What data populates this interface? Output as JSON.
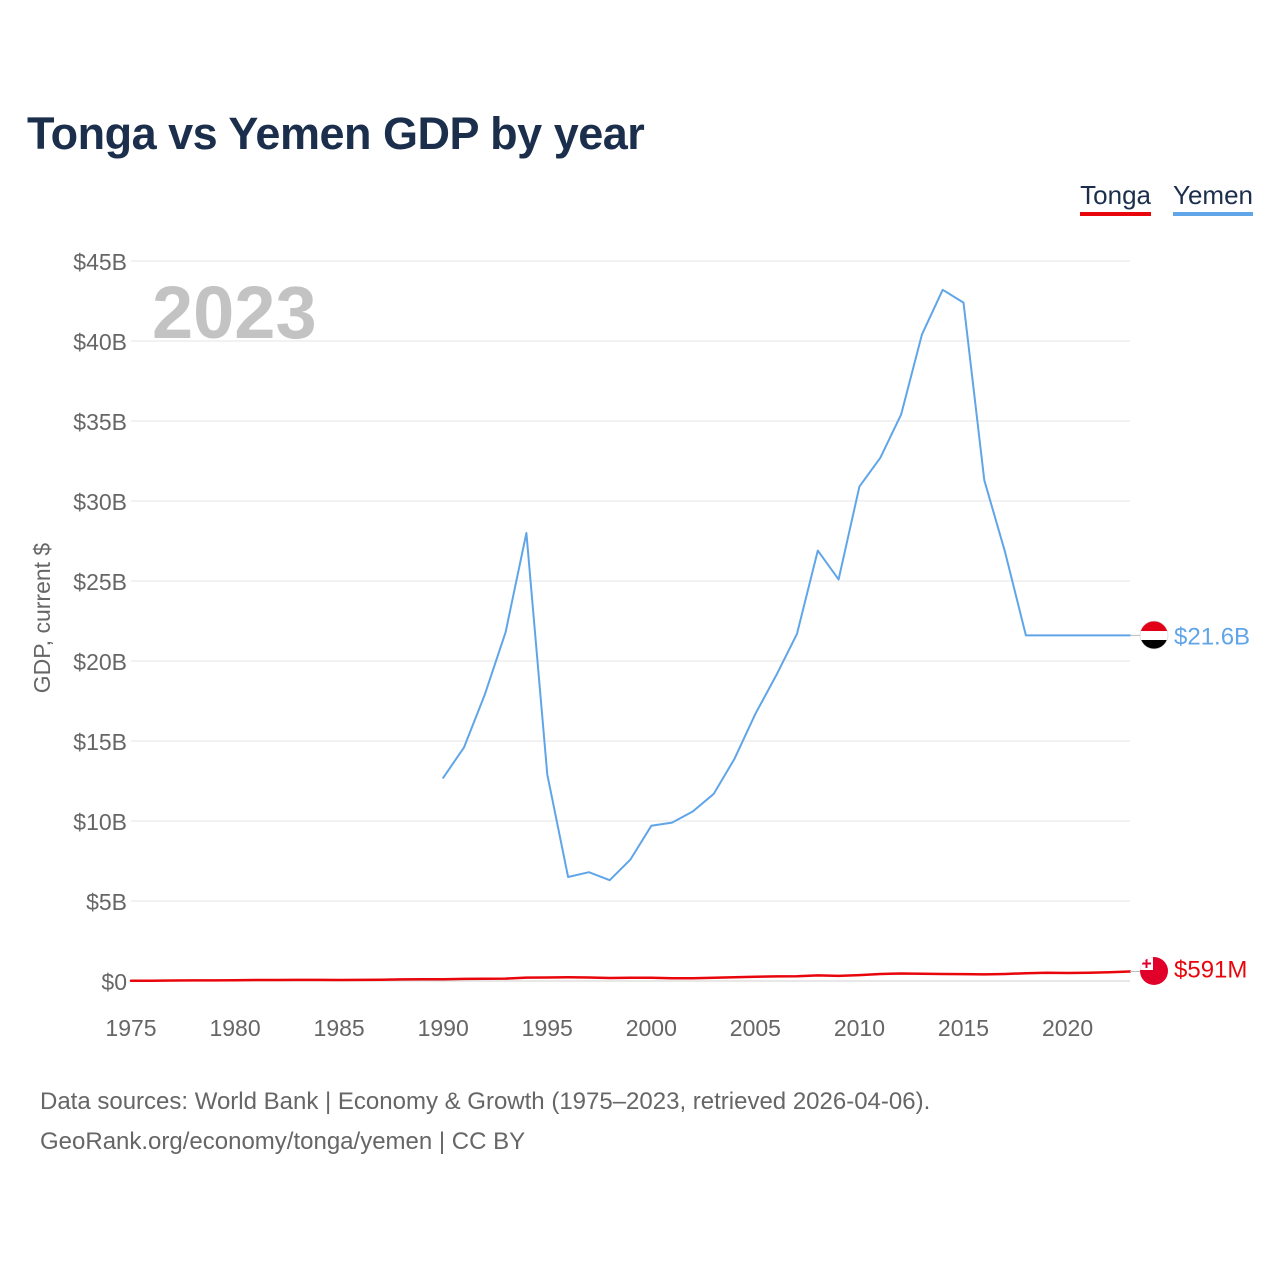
{
  "title": "Tonga vs Yemen GDP by year",
  "legend": [
    {
      "label": "Tonga",
      "color": "#e8060c"
    },
    {
      "label": "Yemen",
      "color": "#60a5e8"
    }
  ],
  "source_line1": "Data sources: World Bank | Economy & Growth (1975–2023, retrieved 2026-04-06).",
  "source_line2": "GeoRank.org/economy/tonga/yemen | CC BY",
  "chart_data": {
    "type": "line",
    "title": "Tonga vs Yemen GDP by year",
    "ylabel": "GDP, current $",
    "xlabel": "",
    "xlim": [
      1975,
      2023
    ],
    "ylim": [
      0,
      45
    ],
    "year_watermark": "2023",
    "x_ticks": [
      1975,
      1980,
      1985,
      1990,
      1995,
      2000,
      2005,
      2010,
      2015,
      2020
    ],
    "x_tick_labels": [
      "1975",
      "1980",
      "1985",
      "1990",
      "1995",
      "2000",
      "2005",
      "2010",
      "2015",
      "2020"
    ],
    "y_ticks": [
      0,
      5,
      10,
      15,
      20,
      25,
      30,
      35,
      40,
      45
    ],
    "y_tick_labels": [
      "$0",
      "$5B",
      "$10B",
      "$15B",
      "$20B",
      "$25B",
      "$30B",
      "$35B",
      "$40B",
      "$45B"
    ],
    "units": "billions of current US$",
    "series": [
      {
        "name": "Yemen",
        "color": "#60a5e8",
        "end_label": "$21.6B",
        "x": [
          1990,
          1991,
          1992,
          1993,
          1994,
          1995,
          1996,
          1997,
          1998,
          1999,
          2000,
          2001,
          2002,
          2003,
          2004,
          2005,
          2006,
          2007,
          2008,
          2009,
          2010,
          2011,
          2012,
          2013,
          2014,
          2015,
          2016,
          2017,
          2018,
          2019,
          2020,
          2021,
          2022,
          2023
        ],
        "values": [
          12.7,
          14.6,
          17.9,
          21.8,
          28.0,
          12.9,
          6.5,
          6.8,
          6.3,
          7.6,
          9.7,
          9.9,
          10.6,
          11.7,
          13.9,
          16.7,
          19.1,
          21.7,
          26.9,
          25.1,
          30.9,
          32.7,
          35.4,
          40.4,
          43.2,
          42.4,
          31.3,
          26.8,
          21.6,
          21.6,
          21.6,
          21.6,
          21.6,
          21.6
        ]
      },
      {
        "name": "Tonga",
        "color": "#e8060c",
        "end_label": "$591M",
        "x": [
          1975,
          1976,
          1977,
          1978,
          1979,
          1980,
          1981,
          1982,
          1983,
          1984,
          1985,
          1986,
          1987,
          1988,
          1989,
          1990,
          1991,
          1992,
          1993,
          1994,
          1995,
          1996,
          1997,
          1998,
          1999,
          2000,
          2001,
          2002,
          2003,
          2004,
          2005,
          2006,
          2007,
          2008,
          2009,
          2010,
          2011,
          2012,
          2013,
          2014,
          2015,
          2016,
          2017,
          2018,
          2019,
          2020,
          2021,
          2022,
          2023
        ],
        "values": [
          0.02,
          0.02,
          0.03,
          0.04,
          0.04,
          0.05,
          0.06,
          0.06,
          0.07,
          0.07,
          0.06,
          0.07,
          0.08,
          0.1,
          0.11,
          0.11,
          0.13,
          0.14,
          0.15,
          0.21,
          0.22,
          0.23,
          0.22,
          0.19,
          0.2,
          0.2,
          0.17,
          0.17,
          0.2,
          0.23,
          0.26,
          0.29,
          0.3,
          0.35,
          0.32,
          0.37,
          0.44,
          0.47,
          0.45,
          0.44,
          0.43,
          0.41,
          0.44,
          0.49,
          0.51,
          0.5,
          0.51,
          0.55,
          0.591
        ]
      }
    ]
  }
}
